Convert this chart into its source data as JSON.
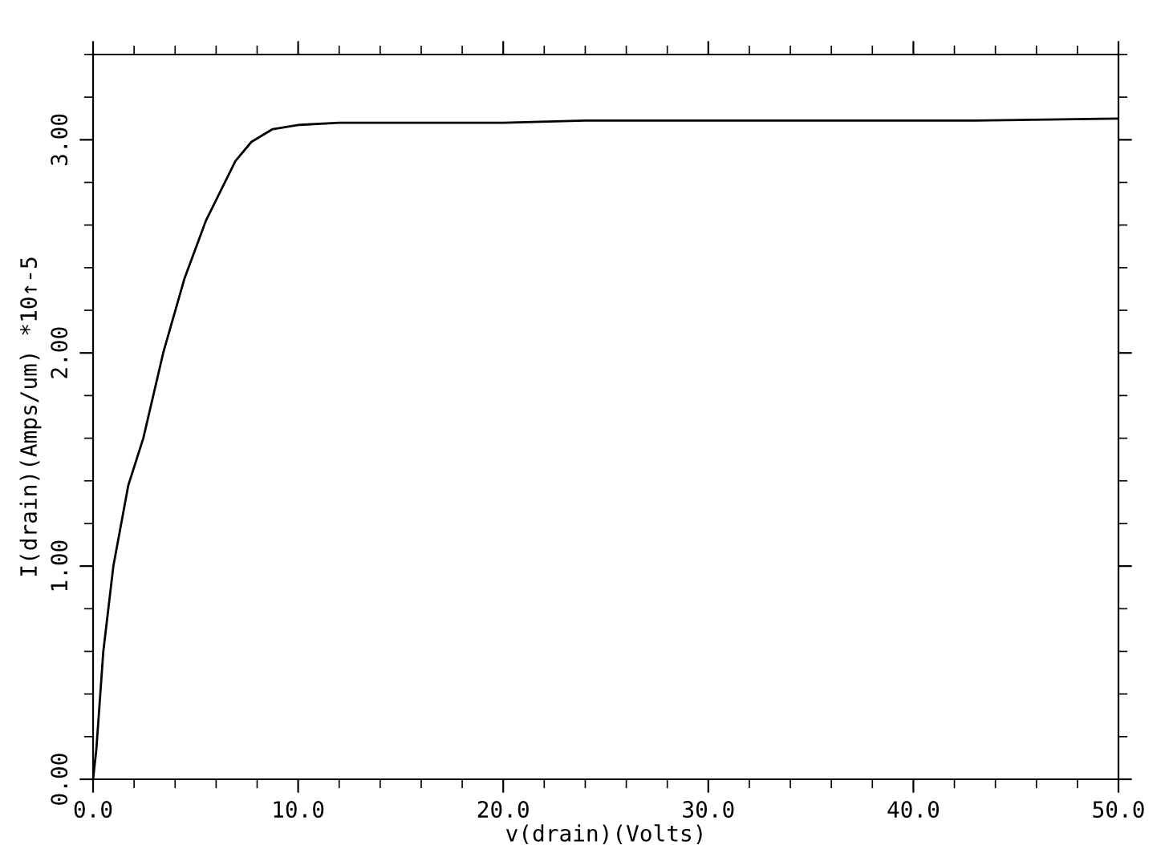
{
  "chart_data": {
    "type": "line",
    "xlabel": "v(drain)(Volts)",
    "ylabel": "I(drain)(Amps/um) *10↑-5",
    "xlim": [
      0,
      50
    ],
    "ylim": [
      0,
      3.4
    ],
    "xticks": [
      {
        "value": 0,
        "label": "0.0"
      },
      {
        "value": 10,
        "label": "10.0"
      },
      {
        "value": 20,
        "label": "20.0"
      },
      {
        "value": 30,
        "label": "30.0"
      },
      {
        "value": 40,
        "label": "40.0"
      },
      {
        "value": 50,
        "label": "50.0"
      }
    ],
    "yticks": [
      {
        "value": 0,
        "label": "0.00"
      },
      {
        "value": 1,
        "label": "1.00"
      },
      {
        "value": 2,
        "label": "2.00"
      },
      {
        "value": 3,
        "label": "3.00"
      }
    ],
    "grid": false,
    "marker": "none",
    "line_style": "solid",
    "series": [
      {
        "color": "#000000",
        "x": [
          0,
          0.16,
          0.5,
          0.99,
          1.72,
          2.45,
          3.42,
          4.46,
          5.5,
          6.94,
          7.72,
          8.76,
          10.07,
          12,
          14.2,
          20,
          24,
          32,
          43,
          50
        ],
        "values": [
          0,
          0.14,
          0.6,
          1.0,
          1.38,
          1.6,
          2.0,
          2.35,
          2.62,
          2.9,
          2.99,
          3.05,
          3.07,
          3.08,
          3.08,
          3.08,
          3.09,
          3.09,
          3.09,
          3.1
        ]
      }
    ]
  }
}
